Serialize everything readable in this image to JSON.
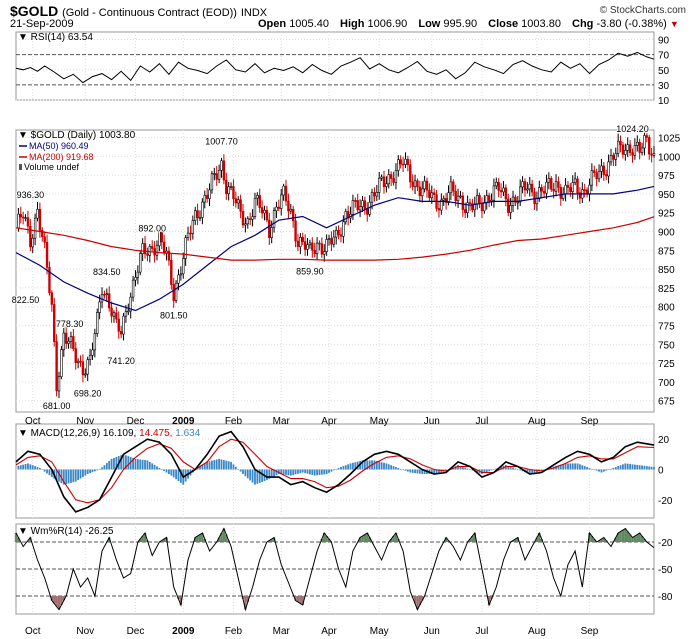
{
  "header": {
    "symbol": "$GOLD",
    "description": "(Gold - Continuous Contract (EOD))",
    "exchange": "INDX",
    "date": "21-Sep-2009",
    "open_label": "Open",
    "open": "1005.40",
    "high_label": "High",
    "high": "1006.90",
    "low_label": "Low",
    "low": "995.90",
    "close_label": "Close",
    "close": "1003.80",
    "chg_label": "Chg",
    "chg": "-3.80 (-0.38%)",
    "credit": "© StockCharts.com"
  },
  "colors": {
    "up": "#000000",
    "down": "#cc0000",
    "ma50": "#000080",
    "ma200": "#cc0000",
    "macd": "#000000",
    "signal": "#cc0000",
    "hist": "#3a87c8",
    "wr_green": "#5e8a5e",
    "wr_red": "#a07070"
  },
  "chart_data": [
    {
      "panel": "rsi",
      "type": "line",
      "title": "RSI(14)",
      "last": "63.54",
      "ylim": [
        10,
        100
      ],
      "ticks": [
        90,
        70,
        50,
        30,
        10
      ],
      "levels": [
        70,
        30
      ],
      "x": [
        0,
        3,
        6,
        9,
        12,
        16,
        20,
        24,
        28,
        32,
        36,
        40,
        44,
        48,
        52,
        56,
        60,
        64,
        68,
        72,
        76,
        80,
        84,
        88,
        92,
        96,
        100,
        104,
        108,
        112,
        116,
        120,
        124,
        128,
        132,
        136,
        140,
        144,
        148,
        152,
        156,
        160,
        164,
        168,
        172,
        176,
        180,
        184,
        188,
        192,
        196,
        200,
        204,
        208,
        212,
        216,
        220,
        224,
        228,
        232,
        236,
        240,
        244,
        248,
        252,
        256,
        260,
        264,
        267
      ],
      "values": [
        52,
        50,
        53,
        48,
        55,
        47,
        38,
        44,
        33,
        41,
        45,
        37,
        48,
        36,
        55,
        47,
        58,
        44,
        60,
        52,
        49,
        45,
        55,
        63,
        50,
        47,
        58,
        46,
        52,
        49,
        54,
        46,
        57,
        49,
        44,
        55,
        60,
        66,
        51,
        58,
        50,
        46,
        53,
        61,
        48,
        44,
        50,
        38,
        46,
        60,
        54,
        50,
        45,
        57,
        62,
        55,
        50,
        47,
        60,
        52,
        58,
        45,
        57,
        63,
        72,
        68,
        73,
        67,
        64
      ]
    },
    {
      "panel": "price",
      "type": "candlestick",
      "title": "$GOLD (Daily)",
      "last": "1003.80",
      "ylim": [
        660,
        1035
      ],
      "ticks": [
        1025,
        1000,
        975,
        950,
        925,
        900,
        875,
        850,
        825,
        800,
        775,
        750,
        725,
        700,
        675
      ],
      "x_start": "2008-09-22",
      "x_end": "2009-09-21",
      "months": [
        "Oct",
        "Nov",
        "Dec",
        "2009",
        "Feb",
        "Mar",
        "Apr",
        "May",
        "Jun",
        "Jul",
        "Aug",
        "Sep"
      ],
      "month_day_index": [
        7,
        29,
        50,
        70,
        91,
        111,
        131,
        152,
        174,
        195,
        218,
        240
      ],
      "annotations": [
        {
          "label": "936.30",
          "day": 6,
          "value": 936.3,
          "pos": "above"
        },
        {
          "label": "822.50",
          "day": 4,
          "value": 822.5,
          "pos": "below"
        },
        {
          "label": "778.30",
          "day": 15,
          "value": 778.3,
          "pos": "right"
        },
        {
          "label": "681.00",
          "day": 17,
          "value": 681.0,
          "pos": "below"
        },
        {
          "label": "698.20",
          "day": 30,
          "value": 698.2,
          "pos": "below"
        },
        {
          "label": "834.50",
          "day": 38,
          "value": 834.5,
          "pos": "above"
        },
        {
          "label": "741.20",
          "day": 44,
          "value": 741.2,
          "pos": "below"
        },
        {
          "label": "892.00",
          "day": 57,
          "value": 892.0,
          "pos": "above"
        },
        {
          "label": "801.50",
          "day": 66,
          "value": 801.5,
          "pos": "below"
        },
        {
          "label": "1007.70",
          "day": 86,
          "value": 1007.7,
          "pos": "above"
        },
        {
          "label": "859.90",
          "day": 123,
          "value": 859.9,
          "pos": "below"
        },
        {
          "label": "1024.20",
          "day": 258,
          "value": 1024.2,
          "pos": "above"
        }
      ],
      "close_path": {
        "x": [
          0,
          3,
          6,
          9,
          12,
          15,
          17,
          20,
          24,
          28,
          31,
          34,
          36,
          38,
          40,
          42,
          44,
          47,
          50,
          53,
          57,
          60,
          63,
          66,
          69,
          72,
          75,
          78,
          81,
          84,
          86,
          88,
          91,
          94,
          97,
          100,
          103,
          106,
          109,
          112,
          115,
          118,
          121,
          123,
          126,
          130,
          134,
          138,
          142,
          146,
          150,
          154,
          158,
          162,
          166,
          170,
          174,
          178,
          182,
          186,
          190,
          194,
          198,
          202,
          206,
          210,
          214,
          218,
          222,
          226,
          230,
          234,
          238,
          242,
          246,
          250,
          254,
          258,
          261,
          264,
          267
        ],
        "values": [
          905,
          920,
          890,
          930,
          870,
          800,
          700,
          760,
          740,
          720,
          725,
          780,
          830,
          815,
          795,
          770,
          765,
          810,
          840,
          870,
          880,
          890,
          865,
          820,
          855,
          890,
          920,
          940,
          955,
          975,
          990,
          965,
          945,
          920,
          915,
          940,
          925,
          905,
          935,
          945,
          925,
          890,
          880,
          870,
          885,
          880,
          890,
          925,
          930,
          935,
          950,
          965,
          980,
          990,
          970,
          955,
          945,
          940,
          950,
          945,
          930,
          935,
          950,
          955,
          940,
          945,
          960,
          950,
          955,
          965,
          950,
          960,
          955,
          970,
          985,
          1000,
          1010,
          1015,
          1005,
          1020,
          1003.8
        ]
      },
      "series": [
        {
          "name": "MA(50)",
          "last": "960.49",
          "x": [
            0,
            10,
            20,
            30,
            40,
            50,
            60,
            70,
            80,
            90,
            100,
            110,
            120,
            130,
            140,
            150,
            160,
            170,
            180,
            190,
            200,
            210,
            220,
            230,
            240,
            250,
            260,
            267
          ],
          "values": [
            872,
            855,
            833,
            818,
            805,
            795,
            810,
            830,
            855,
            880,
            895,
            915,
            920,
            905,
            920,
            935,
            945,
            940,
            940,
            935,
            940,
            940,
            945,
            950,
            950,
            950,
            955,
            960
          ]
        },
        {
          "name": "MA(200)",
          "last": "919.68",
          "x": [
            0,
            10,
            20,
            30,
            40,
            50,
            60,
            70,
            80,
            90,
            100,
            110,
            120,
            130,
            140,
            150,
            160,
            170,
            180,
            190,
            200,
            210,
            220,
            230,
            240,
            250,
            260,
            267
          ],
          "values": [
            905,
            900,
            895,
            888,
            880,
            875,
            872,
            870,
            866,
            862,
            862,
            863,
            863,
            862,
            862,
            862,
            863,
            866,
            870,
            875,
            882,
            888,
            890,
            895,
            900,
            905,
            912,
            919.68
          ]
        },
        {
          "name": "Volume undef",
          "last": ""
        }
      ]
    },
    {
      "panel": "macd",
      "type": "line",
      "title": "MACD(12,26,9)",
      "last_macd": "16.109",
      "last_signal": "14.475",
      "last_hist": "1.634",
      "ylim": [
        -32,
        30
      ],
      "ticks": [
        20,
        0,
        -20
      ],
      "x": [
        0,
        5,
        10,
        15,
        20,
        25,
        30,
        35,
        40,
        45,
        50,
        55,
        60,
        65,
        70,
        75,
        80,
        85,
        90,
        95,
        100,
        105,
        110,
        115,
        120,
        125,
        130,
        135,
        140,
        145,
        150,
        155,
        160,
        165,
        170,
        175,
        180,
        185,
        190,
        195,
        200,
        205,
        210,
        215,
        220,
        225,
        230,
        235,
        240,
        245,
        250,
        255,
        260,
        267
      ],
      "series": [
        {
          "name": "MACD",
          "values": [
            5,
            12,
            10,
            0,
            -18,
            -28,
            -25,
            -20,
            -5,
            10,
            15,
            20,
            18,
            10,
            -5,
            0,
            10,
            22,
            25,
            15,
            0,
            -5,
            -5,
            -10,
            -8,
            -12,
            -15,
            -10,
            -3,
            5,
            10,
            12,
            10,
            5,
            0,
            -3,
            -2,
            5,
            2,
            -5,
            -2,
            5,
            2,
            -3,
            -2,
            3,
            8,
            12,
            10,
            5,
            8,
            15,
            18,
            16.1
          ]
        },
        {
          "name": "Signal",
          "values": [
            3,
            8,
            9,
            5,
            -8,
            -20,
            -22,
            -20,
            -12,
            0,
            8,
            14,
            17,
            14,
            5,
            0,
            5,
            15,
            20,
            18,
            10,
            2,
            -2,
            -6,
            -6,
            -8,
            -12,
            -11,
            -7,
            -1,
            4,
            8,
            9,
            7,
            3,
            0,
            -1,
            2,
            2,
            -2,
            -2,
            2,
            2,
            0,
            -1,
            1,
            4,
            8,
            9,
            7,
            7,
            11,
            15,
            14.5
          ]
        }
      ]
    },
    {
      "panel": "wmr",
      "type": "line",
      "title": "Wm%R(14)",
      "last": "-26.25",
      "ylim": [
        -100,
        0
      ],
      "ticks": [
        -20,
        -50,
        -80
      ],
      "levels": [
        -20,
        -50,
        -80
      ],
      "x": [
        0,
        3,
        6,
        9,
        12,
        15,
        18,
        21,
        24,
        27,
        30,
        33,
        36,
        39,
        42,
        45,
        48,
        51,
        54,
        57,
        60,
        63,
        66,
        69,
        72,
        75,
        78,
        81,
        84,
        87,
        90,
        93,
        96,
        99,
        102,
        105,
        108,
        111,
        114,
        117,
        120,
        123,
        126,
        129,
        132,
        135,
        138,
        141,
        144,
        147,
        150,
        153,
        156,
        159,
        162,
        165,
        168,
        171,
        174,
        177,
        180,
        183,
        186,
        189,
        192,
        195,
        198,
        201,
        204,
        207,
        210,
        213,
        216,
        219,
        222,
        225,
        228,
        231,
        234,
        237,
        240,
        243,
        246,
        249,
        252,
        255,
        258,
        261,
        264,
        267
      ],
      "values": [
        -10,
        -25,
        -15,
        -40,
        -60,
        -85,
        -95,
        -80,
        -50,
        -70,
        -60,
        -80,
        -30,
        -15,
        -40,
        -60,
        -55,
        -20,
        -10,
        -35,
        -20,
        -15,
        -70,
        -90,
        -40,
        -15,
        -10,
        -30,
        -20,
        -5,
        -25,
        -60,
        -95,
        -70,
        -40,
        -20,
        -15,
        -45,
        -65,
        -85,
        -90,
        -60,
        -30,
        -10,
        -20,
        -50,
        -70,
        -30,
        -15,
        -10,
        -25,
        -40,
        -20,
        -10,
        -30,
        -75,
        -95,
        -80,
        -55,
        -30,
        -15,
        -25,
        -40,
        -20,
        -10,
        -50,
        -90,
        -70,
        -40,
        -20,
        -15,
        -40,
        -25,
        -10,
        -30,
        -60,
        -80,
        -45,
        -30,
        -70,
        -10,
        -20,
        -15,
        -25,
        -10,
        -5,
        -15,
        -10,
        -20,
        -26.25
      ]
    }
  ]
}
